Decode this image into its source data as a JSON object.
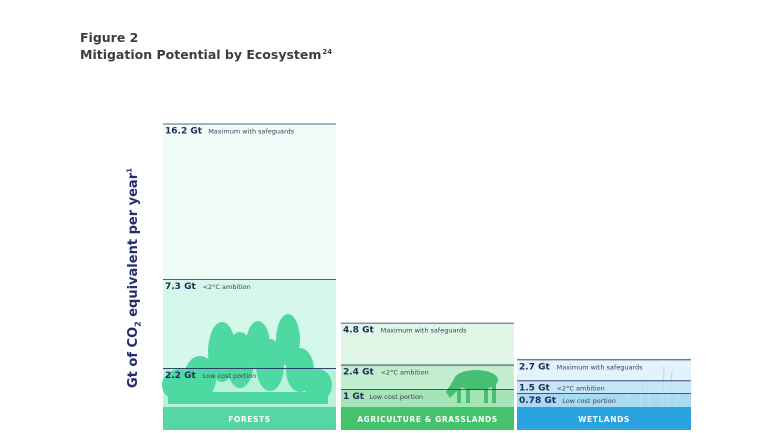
{
  "figure": {
    "title": "Figure 2",
    "subtitle": "Mitigation Potential by Ecosystem",
    "subtitle_ref": "24"
  },
  "chart_data": {
    "type": "bar",
    "title": "Mitigation Potential by Ecosystem",
    "ylabel": "Gt of CO2 equivalent per year",
    "ylim": [
      0,
      17.5
    ],
    "grid": false,
    "categories": [
      "FORESTS",
      "AGRICULTURE & GRASSLANDS",
      "WETLANDS"
    ],
    "series": [
      {
        "name": "Maximum with safeguards",
        "values": [
          16.2,
          4.8,
          2.7
        ]
      },
      {
        "name": "<2°C ambition",
        "values": [
          7.3,
          2.4,
          1.5
        ]
      },
      {
        "name": "Low cost portion",
        "values": [
          2.2,
          1,
          0.78
        ]
      }
    ],
    "labels": [
      [
        {
          "value": "16.2 Gt",
          "desc": "Maximum with safeguards"
        },
        {
          "value": "7.3 Gt",
          "desc": "<2°C ambition"
        },
        {
          "value": "2.2 Gt",
          "desc": "Low cost portion"
        }
      ],
      [
        {
          "value": "4.8 Gt",
          "desc": "Maximum with safeguards"
        },
        {
          "value": "2.4 Gt",
          "desc": "<2°C ambition"
        },
        {
          "value": "1 Gt",
          "desc": "Low cost portion"
        }
      ],
      [
        {
          "value": "2.7 Gt",
          "desc": "Maximum with safeguards"
        },
        {
          "value": "1.5 Gt",
          "desc": "<2°C ambition"
        },
        {
          "value": "0.78 Gt",
          "desc": "Low cost portion"
        }
      ]
    ],
    "colors": {
      "forests": [
        "#effcf8",
        "#d6f7eb",
        "#b9f1db",
        "#58d5a4"
      ],
      "agriculture": [
        "#dff6e6",
        "#c2eecf",
        "#a4e4b6",
        "#45c26c"
      ],
      "wetlands": [
        "#e3f3fc",
        "#c7e7f8",
        "#a9daf4",
        "#2aa3de"
      ],
      "line": "#1f2a5a",
      "silhouette": [
        "#4fd9a2",
        "#47be73",
        "#b6e4f6"
      ]
    }
  }
}
